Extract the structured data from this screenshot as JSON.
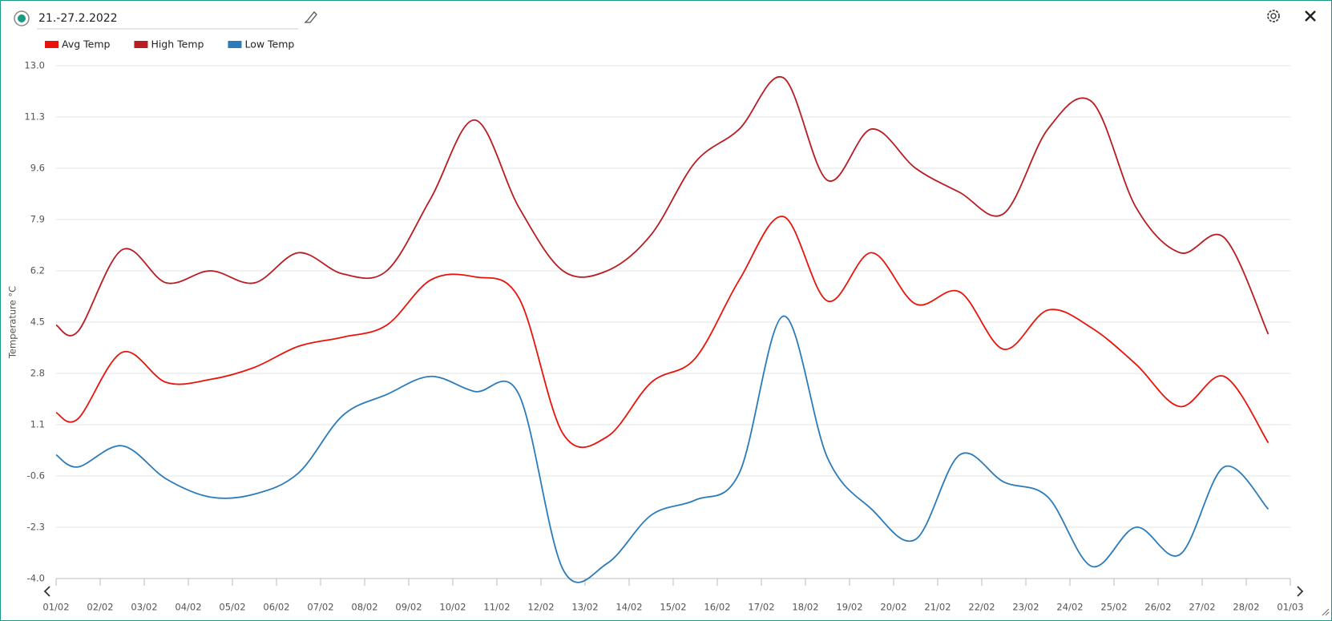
{
  "chart_data": {
    "type": "line",
    "title": "21.-27.2.2022",
    "y_label": "Temperature °C",
    "x": [
      0,
      0.5,
      1.5,
      2.5,
      3.5,
      4.5,
      5.5,
      6.5,
      7.5,
      8.5,
      9.5,
      10.5,
      11.5,
      12.5,
      13.5,
      14.5,
      15.5,
      16.5,
      17.5,
      18.5,
      19.5,
      20.5,
      21.5,
      22.5,
      23.5,
      24.5,
      25.5,
      26.5,
      27.5
    ],
    "series": [
      {
        "name": "Avg Temp",
        "color": "#e8140c",
        "values": [
          1.5,
          1.3,
          3.5,
          2.5,
          2.6,
          3.0,
          3.7,
          4.0,
          4.4,
          5.9,
          6.0,
          5.3,
          0.8,
          0.7,
          2.5,
          3.3,
          5.9,
          8.0,
          5.2,
          6.8,
          5.1,
          5.5,
          3.6,
          4.9,
          4.3,
          3.1,
          1.7,
          2.7,
          0.5
        ]
      },
      {
        "name": "High Temp",
        "color": "#b91c22",
        "values": [
          4.4,
          4.2,
          6.9,
          5.8,
          6.2,
          5.8,
          6.8,
          6.1,
          6.2,
          8.6,
          11.2,
          8.3,
          6.2,
          6.2,
          7.4,
          9.8,
          10.9,
          12.6,
          9.2,
          10.9,
          9.6,
          8.8,
          8.1,
          10.9,
          11.8,
          8.3,
          6.8,
          7.3,
          4.1
        ]
      },
      {
        "name": "Low Temp",
        "color": "#2b7bba",
        "values": [
          0.1,
          -0.3,
          0.4,
          -0.7,
          -1.3,
          -1.2,
          -0.5,
          1.4,
          2.1,
          2.7,
          2.2,
          2.1,
          -3.7,
          -3.5,
          -1.9,
          -1.4,
          -0.5,
          4.7,
          0.0,
          -1.7,
          -2.7,
          0.1,
          -0.8,
          -1.3,
          -3.6,
          -2.3,
          -3.2,
          -0.3,
          -1.7
        ]
      }
    ],
    "xlim": [
      0,
      28
    ],
    "xticks": [
      {
        "value": 0,
        "label": "01/02"
      },
      {
        "value": 1,
        "label": "02/02"
      },
      {
        "value": 2,
        "label": "03/02"
      },
      {
        "value": 3,
        "label": "04/02"
      },
      {
        "value": 4,
        "label": "05/02"
      },
      {
        "value": 5,
        "label": "06/02"
      },
      {
        "value": 6,
        "label": "07/02"
      },
      {
        "value": 7,
        "label": "08/02"
      },
      {
        "value": 8,
        "label": "09/02"
      },
      {
        "value": 9,
        "label": "10/02"
      },
      {
        "value": 10,
        "label": "11/02"
      },
      {
        "value": 11,
        "label": "12/02"
      },
      {
        "value": 12,
        "label": "13/02"
      },
      {
        "value": 13,
        "label": "14/02"
      },
      {
        "value": 14,
        "label": "15/02"
      },
      {
        "value": 15,
        "label": "16/02"
      },
      {
        "value": 16,
        "label": "17/02"
      },
      {
        "value": 17,
        "label": "18/02"
      },
      {
        "value": 18,
        "label": "19/02"
      },
      {
        "value": 19,
        "label": "20/02"
      },
      {
        "value": 20,
        "label": "21/02"
      },
      {
        "value": 21,
        "label": "22/02"
      },
      {
        "value": 22,
        "label": "23/02"
      },
      {
        "value": 23,
        "label": "24/02"
      },
      {
        "value": 24,
        "label": "25/02"
      },
      {
        "value": 25,
        "label": "26/02"
      },
      {
        "value": 26,
        "label": "27/02"
      },
      {
        "value": 27,
        "label": "28/02"
      },
      {
        "value": 28,
        "label": "01/03"
      }
    ],
    "ylim": [
      -4.0,
      13.0
    ],
    "yticks": [
      {
        "value": 13.0,
        "label": "13.0"
      },
      11.3,
      9.6,
      7.9,
      6.2,
      4.5,
      2.8,
      1.1,
      -0.6,
      -2.3,
      {
        "value": -4.0,
        "label": "-4.0"
      }
    ],
    "grid": true
  }
}
